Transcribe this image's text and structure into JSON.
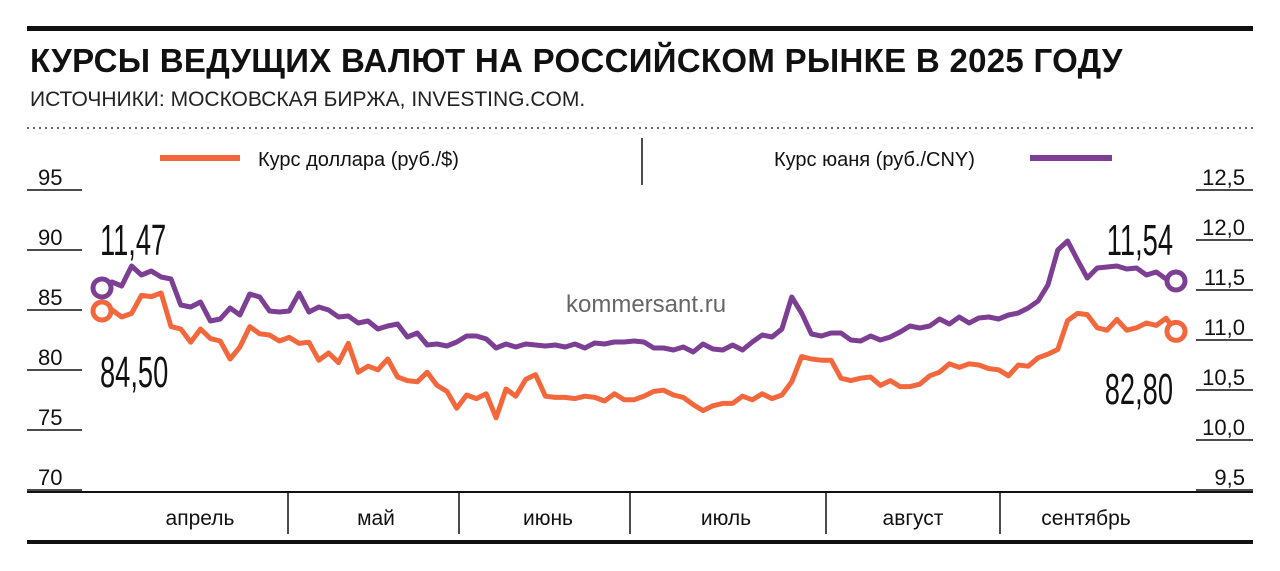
{
  "header": {
    "title": "КУРСЫ ВЕДУЩИХ ВАЛЮТ НА РОССИЙСКОМ РЫНКЕ В 2025 ГОДУ",
    "source": "ИСТОЧНИКИ: МОСКОВСКАЯ БИРЖА, INVESTING.COM."
  },
  "watermark": "kommersant.ru",
  "colors": {
    "usd": "#f2683c",
    "cny": "#7c3f93",
    "text": "#111111"
  },
  "chart_data": {
    "type": "line",
    "x_axis": {
      "categories": [
        "апрель",
        "май",
        "июнь",
        "июль",
        "август",
        "сентябрь"
      ]
    },
    "y_axis_left": {
      "name": "Курс доллара (руб./$)",
      "ticks": [
        95,
        90,
        85,
        80,
        75,
        70
      ],
      "ylim": [
        70,
        95
      ]
    },
    "y_axis_right": {
      "name": "Курс юаня (руб./CNY)",
      "ticks": [
        "12,5",
        "12,0",
        "11,5",
        "11,0",
        "10,5",
        "10,0",
        "9,5"
      ],
      "ylim": [
        9.5,
        12.5
      ]
    },
    "legend": {
      "usd": "Курс доллара (руб./$)",
      "cny": "Курс юаня (руб./CNY)",
      "placement": "top"
    },
    "series": [
      {
        "name": "Курс доллара (руб./$)",
        "axis": "left",
        "start_label": "84,50",
        "end_label": "82,80",
        "values": [
          84.5,
          84.6,
          84.0,
          84.3,
          85.8,
          85.7,
          86.0,
          83.2,
          83.0,
          81.9,
          83.0,
          82.2,
          82.0,
          80.5,
          81.5,
          83.2,
          82.6,
          82.5,
          82.0,
          82.3,
          81.8,
          81.9,
          80.4,
          81.0,
          80.2,
          81.8,
          79.4,
          79.9,
          79.6,
          80.5,
          79.0,
          78.7,
          78.6,
          79.4,
          78.3,
          77.8,
          76.4,
          77.5,
          77.2,
          77.6,
          75.6,
          78.0,
          77.4,
          78.8,
          79.2,
          77.4,
          77.3,
          77.3,
          77.2,
          77.4,
          77.3,
          77.0,
          77.6,
          77.1,
          77.1,
          77.4,
          77.8,
          77.9,
          77.5,
          77.3,
          76.7,
          76.2,
          76.6,
          76.8,
          76.8,
          77.4,
          77.1,
          77.6,
          77.2,
          77.5,
          78.6,
          80.7,
          80.5,
          80.4,
          80.4,
          78.9,
          78.7,
          78.9,
          79.0,
          78.3,
          78.7,
          78.2,
          78.2,
          78.4,
          79.1,
          79.4,
          80.1,
          79.8,
          80.1,
          80.0,
          79.7,
          79.6,
          79.1,
          80.0,
          79.9,
          80.6,
          80.9,
          81.3,
          83.7,
          84.3,
          84.2,
          83.1,
          82.9,
          83.8,
          82.9,
          83.1,
          83.5,
          83.3,
          83.9,
          82.8
        ]
      },
      {
        "name": "Курс юаня (руб./CNY)",
        "axis": "right",
        "start_label": "11,47",
        "end_label": "11,54",
        "values": [
          11.47,
          11.53,
          11.49,
          11.69,
          11.6,
          11.64,
          11.58,
          11.56,
          11.3,
          11.28,
          11.33,
          11.14,
          11.16,
          11.27,
          11.2,
          11.41,
          11.38,
          11.24,
          11.23,
          11.24,
          11.42,
          11.23,
          11.28,
          11.25,
          11.18,
          11.19,
          11.12,
          11.14,
          11.06,
          11.09,
          11.11,
          10.98,
          11.02,
          10.9,
          10.91,
          10.89,
          10.93,
          10.99,
          10.99,
          10.96,
          10.87,
          10.91,
          10.88,
          10.91,
          10.9,
          10.89,
          10.9,
          10.88,
          10.91,
          10.87,
          10.92,
          10.91,
          10.93,
          10.93,
          10.94,
          10.93,
          10.87,
          10.87,
          10.85,
          10.88,
          10.83,
          10.91,
          10.86,
          10.85,
          10.9,
          10.85,
          10.93,
          11.0,
          10.98,
          11.06,
          11.38,
          11.22,
          11.01,
          10.99,
          11.02,
          11.02,
          10.95,
          10.94,
          10.99,
          10.95,
          10.98,
          11.03,
          11.09,
          11.07,
          11.09,
          11.16,
          11.11,
          11.18,
          11.12,
          11.17,
          11.18,
          11.16,
          11.2,
          11.22,
          11.27,
          11.34,
          11.5,
          11.85,
          11.94,
          11.75,
          11.57,
          11.67,
          11.68,
          11.69,
          11.66,
          11.67,
          11.6,
          11.63,
          11.56,
          11.54
        ]
      }
    ]
  }
}
